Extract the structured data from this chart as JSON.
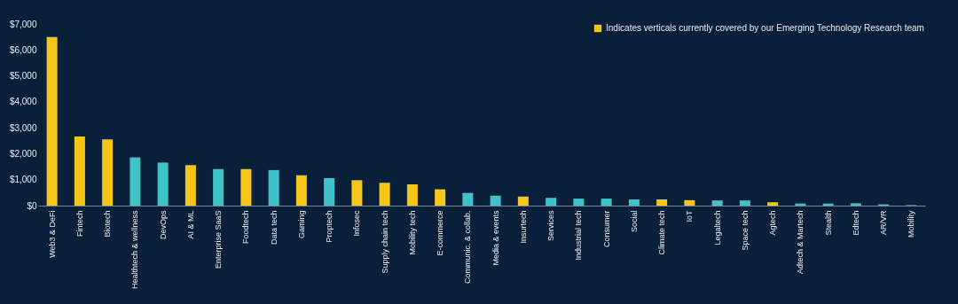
{
  "chart_data": {
    "type": "bar",
    "categories": [
      "Web3 & DeFi",
      "Fintech",
      "Biotech",
      "Healthtech & wellness",
      "DevOps",
      "AI & ML",
      "Enterprise SaaS",
      "Foodtech",
      "Data tech",
      "Gaming",
      "Proptech",
      "Infosec",
      "Supply chain tech",
      "Mobility tech",
      "E-commerce",
      "Communic. & collab.",
      "Media & events",
      "Insurtech",
      "Services",
      "Industrial tech",
      "Consumer",
      "Social",
      "Climate tech",
      "IoT",
      "Legaltech",
      "Space tech",
      "Agtech",
      "Adtech & Martech",
      "Stealth",
      "Edtech",
      "AR/VR",
      "Mobility"
    ],
    "series": [
      {
        "name": "Indicates verticals currently covered by our Emerging Technology Research team",
        "color": "#f5c518",
        "values": [
          6500,
          2660,
          2550,
          null,
          null,
          1560,
          null,
          1410,
          null,
          1170,
          null,
          980,
          880,
          820,
          630,
          null,
          null,
          350,
          null,
          null,
          null,
          null,
          240,
          210,
          null,
          null,
          130,
          null,
          null,
          null,
          null,
          null
        ]
      },
      {
        "color": "#3ec3c9",
        "values": [
          null,
          null,
          null,
          1860,
          1660,
          null,
          1410,
          null,
          1370,
          null,
          1060,
          null,
          null,
          null,
          null,
          490,
          380,
          null,
          300,
          270,
          270,
          240,
          null,
          null,
          200,
          200,
          null,
          80,
          80,
          90,
          50,
          20
        ]
      }
    ],
    "ylim": [
      0,
      7000
    ],
    "yticks": [
      {
        "value": 0,
        "label": "$0"
      },
      {
        "value": 1000,
        "label": "$1,000"
      },
      {
        "value": 2000,
        "label": "$2,000"
      },
      {
        "value": 3000,
        "label": "$3,000"
      },
      {
        "value": 4000,
        "label": "$4,000"
      },
      {
        "value": 5000,
        "label": "$5,000"
      },
      {
        "value": 6000,
        "label": "$6,000"
      },
      {
        "value": 7000,
        "label": "$7,000"
      }
    ],
    "grid": false,
    "legend": "top right"
  }
}
